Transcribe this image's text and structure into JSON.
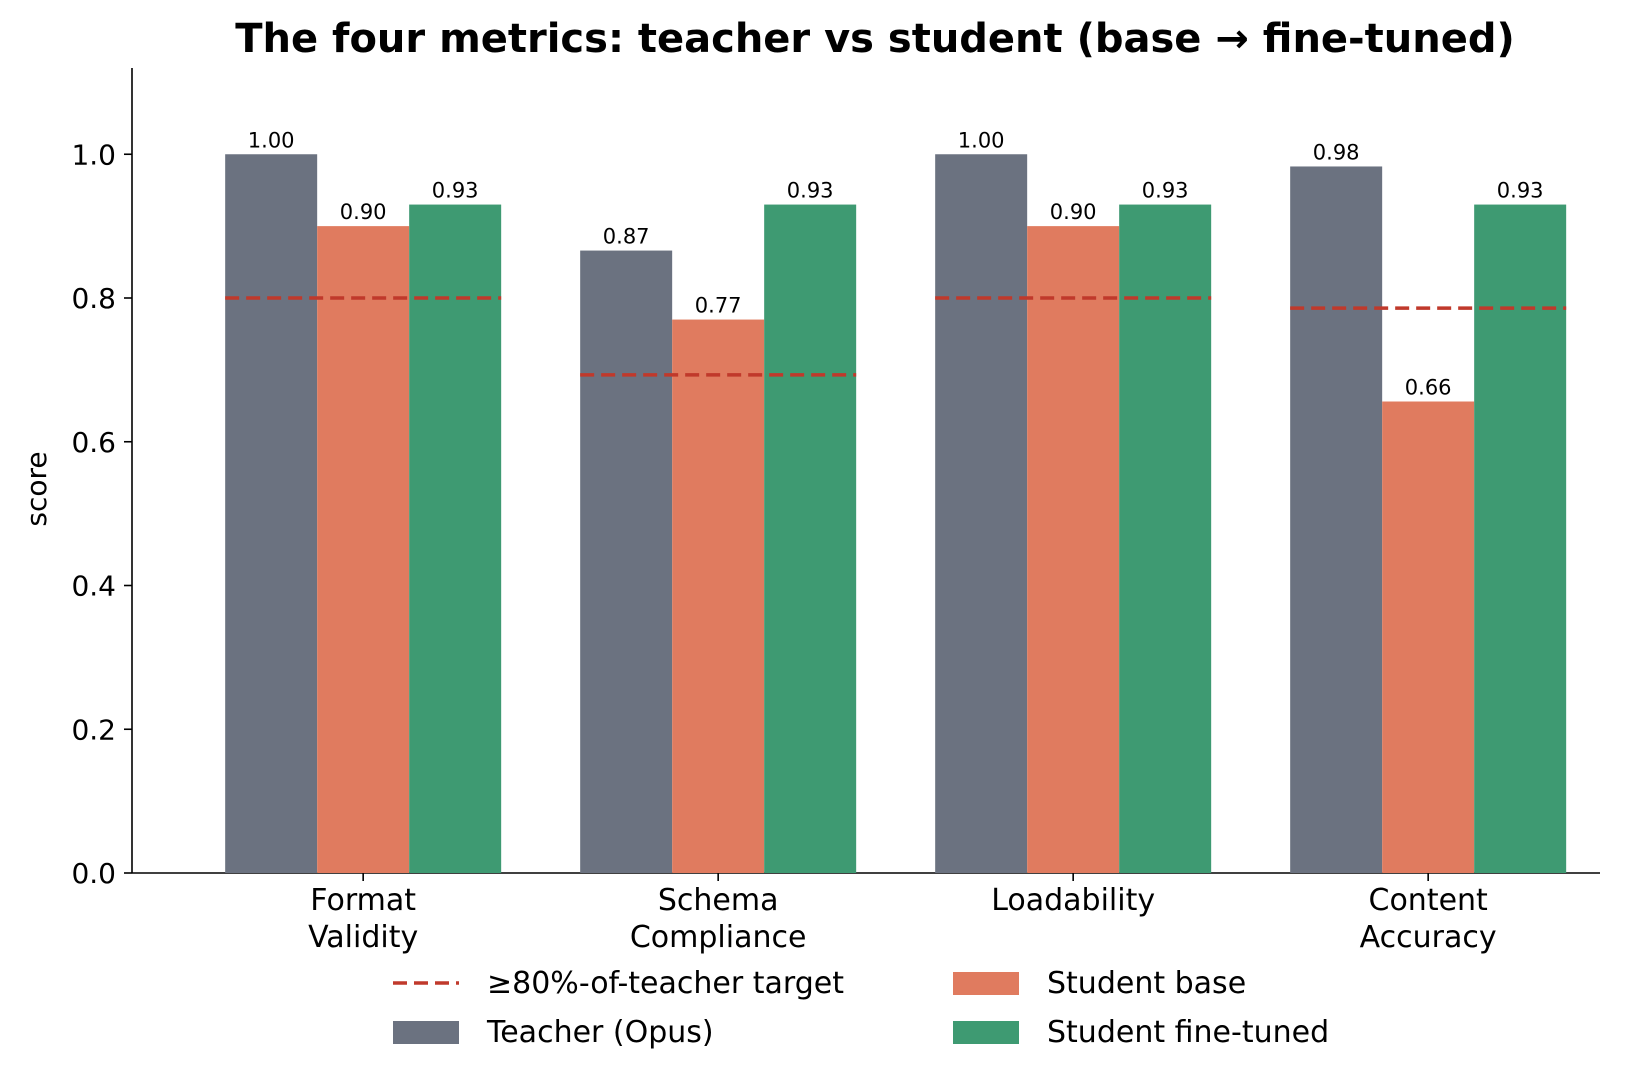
{
  "chart_data": {
    "type": "bar",
    "title": "The four metrics: teacher vs student (base → fine-tuned)",
    "ylabel": "score",
    "xlabel": "",
    "ylim": [
      0,
      1.12
    ],
    "yticks": [
      "0.0",
      "0.2",
      "0.4",
      "0.6",
      "0.8",
      "1.0"
    ],
    "grid": false,
    "categories": [
      [
        "Format",
        "Validity"
      ],
      [
        "Schema",
        "Compliance"
      ],
      [
        "Loadability"
      ],
      [
        "Content",
        "Accuracy"
      ]
    ],
    "series": [
      {
        "name": "Teacher (Opus)",
        "color": "#6b7280",
        "values": [
          1.0,
          0.866,
          1.0,
          0.983
        ],
        "labels": [
          "1.00",
          "0.87",
          "1.00",
          "0.98"
        ]
      },
      {
        "name": "Student base",
        "color": "#e07b5f",
        "values": [
          0.9,
          0.77,
          0.9,
          0.656
        ],
        "labels": [
          "0.90",
          "0.77",
          "0.90",
          "0.66"
        ]
      },
      {
        "name": "Student fine-tuned",
        "color": "#3e9a72",
        "values": [
          0.93,
          0.93,
          0.93,
          0.93
        ],
        "labels": [
          "0.93",
          "0.93",
          "0.93",
          "0.93"
        ]
      }
    ],
    "target": {
      "name": "≥80%-of-teacher target",
      "color": "#c0392b",
      "values": [
        0.8,
        0.693,
        0.8,
        0.786
      ]
    },
    "legend": {
      "placement": "bottom-center",
      "columns": 2
    }
  }
}
